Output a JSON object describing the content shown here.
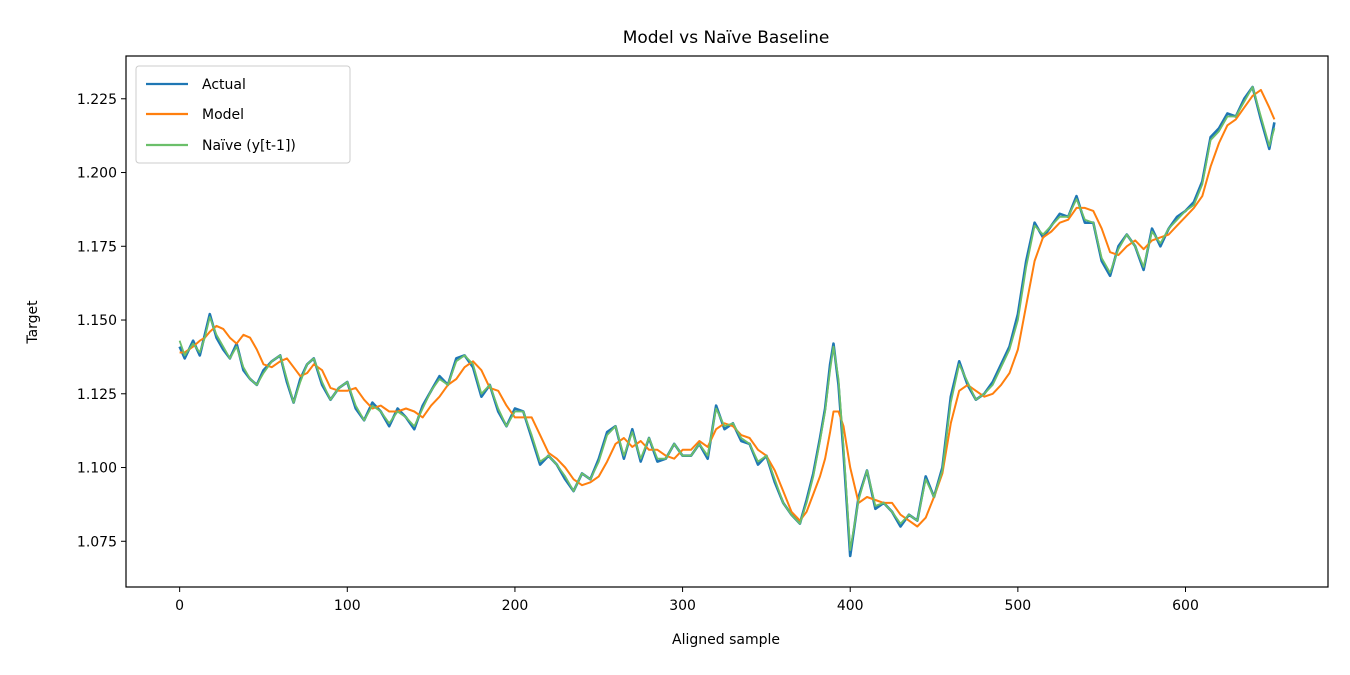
{
  "chart_data": {
    "type": "line",
    "title": "Model vs Naïve Baseline",
    "xlabel": "Aligned sample",
    "ylabel": "Target",
    "xlim": [
      -32,
      685
    ],
    "ylim": [
      1.0595,
      1.2395
    ],
    "xticks": [
      0,
      100,
      200,
      300,
      400,
      500,
      600
    ],
    "xtick_labels": [
      "0",
      "100",
      "200",
      "300",
      "400",
      "500",
      "600"
    ],
    "yticks": [
      1.075,
      1.1,
      1.125,
      1.15,
      1.175,
      1.2,
      1.225
    ],
    "ytick_labels": [
      "1.075",
      "1.100",
      "1.125",
      "1.150",
      "1.175",
      "1.200",
      "1.225"
    ],
    "grid": false,
    "legend_position": "top-left",
    "series": [
      {
        "name": "Actual",
        "color": "#1f77b4",
        "x": [
          0,
          3,
          8,
          12,
          15,
          18,
          22,
          26,
          30,
          34,
          38,
          42,
          46,
          50,
          55,
          60,
          64,
          68,
          72,
          76,
          80,
          85,
          90,
          95,
          100,
          105,
          110,
          115,
          120,
          125,
          130,
          135,
          140,
          145,
          150,
          155,
          160,
          165,
          170,
          175,
          180,
          185,
          190,
          195,
          200,
          205,
          210,
          215,
          220,
          225,
          230,
          235,
          240,
          245,
          250,
          255,
          260,
          265,
          270,
          275,
          280,
          285,
          290,
          295,
          300,
          305,
          310,
          315,
          320,
          325,
          330,
          335,
          340,
          345,
          350,
          355,
          360,
          365,
          370,
          374,
          378,
          382,
          385,
          388,
          390,
          393,
          396,
          400,
          405,
          410,
          415,
          420,
          425,
          430,
          435,
          440,
          445,
          450,
          455,
          460,
          465,
          470,
          475,
          480,
          485,
          490,
          495,
          500,
          505,
          510,
          515,
          520,
          525,
          530,
          535,
          540,
          545,
          550,
          555,
          560,
          565,
          570,
          575,
          580,
          585,
          590,
          595,
          600,
          605,
          610,
          615,
          620,
          625,
          630,
          635,
          640,
          645,
          650,
          653
        ],
        "values": [
          1.141,
          1.137,
          1.143,
          1.138,
          1.145,
          1.152,
          1.144,
          1.14,
          1.137,
          1.142,
          1.133,
          1.13,
          1.128,
          1.133,
          1.136,
          1.138,
          1.129,
          1.122,
          1.13,
          1.135,
          1.137,
          1.128,
          1.123,
          1.127,
          1.129,
          1.12,
          1.116,
          1.122,
          1.119,
          1.114,
          1.12,
          1.117,
          1.113,
          1.121,
          1.126,
          1.131,
          1.128,
          1.137,
          1.138,
          1.134,
          1.124,
          1.128,
          1.119,
          1.114,
          1.12,
          1.119,
          1.11,
          1.101,
          1.104,
          1.101,
          1.096,
          1.092,
          1.098,
          1.096,
          1.103,
          1.112,
          1.114,
          1.103,
          1.113,
          1.102,
          1.11,
          1.102,
          1.103,
          1.108,
          1.104,
          1.104,
          1.108,
          1.103,
          1.121,
          1.113,
          1.115,
          1.109,
          1.108,
          1.101,
          1.104,
          1.095,
          1.088,
          1.084,
          1.081,
          1.089,
          1.098,
          1.11,
          1.12,
          1.135,
          1.142,
          1.128,
          1.105,
          1.07,
          1.09,
          1.099,
          1.086,
          1.088,
          1.085,
          1.08,
          1.084,
          1.082,
          1.097,
          1.09,
          1.1,
          1.124,
          1.136,
          1.128,
          1.123,
          1.125,
          1.129,
          1.135,
          1.141,
          1.152,
          1.17,
          1.183,
          1.178,
          1.182,
          1.186,
          1.185,
          1.192,
          1.183,
          1.183,
          1.17,
          1.165,
          1.175,
          1.179,
          1.175,
          1.167,
          1.181,
          1.175,
          1.181,
          1.185,
          1.187,
          1.19,
          1.197,
          1.212,
          1.215,
          1.22,
          1.219,
          1.225,
          1.229,
          1.218,
          1.208,
          1.217
        ]
      },
      {
        "name": "Model",
        "color": "#ff7f0e",
        "x": [
          0,
          3,
          8,
          12,
          15,
          18,
          22,
          26,
          30,
          34,
          38,
          42,
          46,
          50,
          55,
          60,
          64,
          68,
          72,
          76,
          80,
          85,
          90,
          95,
          100,
          105,
          110,
          115,
          120,
          125,
          130,
          135,
          140,
          145,
          150,
          155,
          160,
          165,
          170,
          175,
          180,
          185,
          190,
          195,
          200,
          205,
          210,
          215,
          220,
          225,
          230,
          235,
          240,
          245,
          250,
          255,
          260,
          265,
          270,
          275,
          280,
          285,
          290,
          295,
          300,
          305,
          310,
          315,
          320,
          325,
          330,
          335,
          340,
          345,
          350,
          355,
          360,
          365,
          370,
          374,
          378,
          382,
          385,
          388,
          390,
          393,
          396,
          400,
          405,
          410,
          415,
          420,
          425,
          430,
          435,
          440,
          445,
          450,
          455,
          460,
          465,
          470,
          475,
          480,
          485,
          490,
          495,
          500,
          505,
          510,
          515,
          520,
          525,
          530,
          535,
          540,
          545,
          550,
          555,
          560,
          565,
          570,
          575,
          580,
          585,
          590,
          595,
          600,
          605,
          610,
          615,
          620,
          625,
          630,
          635,
          640,
          645,
          650,
          653
        ],
        "values": [
          1.139,
          1.139,
          1.141,
          1.143,
          1.144,
          1.146,
          1.148,
          1.147,
          1.144,
          1.142,
          1.145,
          1.144,
          1.14,
          1.135,
          1.134,
          1.136,
          1.137,
          1.134,
          1.131,
          1.132,
          1.135,
          1.133,
          1.127,
          1.126,
          1.126,
          1.127,
          1.123,
          1.12,
          1.121,
          1.119,
          1.119,
          1.12,
          1.119,
          1.117,
          1.121,
          1.124,
          1.128,
          1.13,
          1.134,
          1.136,
          1.133,
          1.127,
          1.126,
          1.121,
          1.117,
          1.117,
          1.117,
          1.111,
          1.105,
          1.103,
          1.1,
          1.096,
          1.094,
          1.095,
          1.097,
          1.102,
          1.108,
          1.11,
          1.107,
          1.109,
          1.106,
          1.106,
          1.104,
          1.103,
          1.106,
          1.106,
          1.109,
          1.107,
          1.113,
          1.115,
          1.114,
          1.111,
          1.11,
          1.106,
          1.104,
          1.099,
          1.092,
          1.085,
          1.082,
          1.085,
          1.091,
          1.097,
          1.103,
          1.112,
          1.119,
          1.119,
          1.114,
          1.1,
          1.088,
          1.09,
          1.089,
          1.088,
          1.088,
          1.084,
          1.082,
          1.08,
          1.083,
          1.09,
          1.098,
          1.115,
          1.126,
          1.128,
          1.126,
          1.124,
          1.125,
          1.128,
          1.132,
          1.14,
          1.155,
          1.17,
          1.178,
          1.18,
          1.183,
          1.184,
          1.188,
          1.188,
          1.187,
          1.181,
          1.173,
          1.172,
          1.175,
          1.177,
          1.174,
          1.177,
          1.178,
          1.179,
          1.182,
          1.185,
          1.188,
          1.192,
          1.202,
          1.21,
          1.216,
          1.218,
          1.222,
          1.226,
          1.228,
          1.222,
          1.218
        ]
      },
      {
        "name": "Naïve (y[t-1])",
        "color": "#6bbf6a",
        "x": [
          0,
          3,
          8,
          12,
          15,
          18,
          22,
          26,
          30,
          34,
          38,
          42,
          46,
          50,
          55,
          60,
          64,
          68,
          72,
          76,
          80,
          85,
          90,
          95,
          100,
          105,
          110,
          115,
          120,
          125,
          130,
          135,
          140,
          145,
          150,
          155,
          160,
          165,
          170,
          175,
          180,
          185,
          190,
          195,
          200,
          205,
          210,
          215,
          220,
          225,
          230,
          235,
          240,
          245,
          250,
          255,
          260,
          265,
          270,
          275,
          280,
          285,
          290,
          295,
          300,
          305,
          310,
          315,
          320,
          325,
          330,
          335,
          340,
          345,
          350,
          355,
          360,
          365,
          370,
          374,
          378,
          382,
          385,
          388,
          390,
          393,
          396,
          400,
          405,
          410,
          415,
          420,
          425,
          430,
          435,
          440,
          445,
          450,
          455,
          460,
          465,
          470,
          475,
          480,
          485,
          490,
          495,
          500,
          505,
          510,
          515,
          520,
          525,
          530,
          535,
          540,
          545,
          550,
          555,
          560,
          565,
          570,
          575,
          580,
          585,
          590,
          595,
          600,
          605,
          610,
          615,
          620,
          625,
          630,
          635,
          640,
          645,
          650,
          653
        ],
        "values": [
          1.143,
          1.138,
          1.142,
          1.139,
          1.144,
          1.151,
          1.145,
          1.141,
          1.137,
          1.141,
          1.134,
          1.13,
          1.128,
          1.132,
          1.136,
          1.138,
          1.13,
          1.122,
          1.129,
          1.135,
          1.137,
          1.129,
          1.123,
          1.127,
          1.129,
          1.121,
          1.116,
          1.121,
          1.119,
          1.115,
          1.119,
          1.117,
          1.114,
          1.12,
          1.126,
          1.13,
          1.128,
          1.136,
          1.138,
          1.135,
          1.125,
          1.128,
          1.12,
          1.114,
          1.119,
          1.119,
          1.111,
          1.102,
          1.104,
          1.101,
          1.097,
          1.092,
          1.098,
          1.096,
          1.102,
          1.111,
          1.114,
          1.104,
          1.112,
          1.103,
          1.11,
          1.103,
          1.103,
          1.108,
          1.104,
          1.104,
          1.108,
          1.104,
          1.12,
          1.114,
          1.115,
          1.11,
          1.108,
          1.102,
          1.104,
          1.096,
          1.088,
          1.084,
          1.081,
          1.088,
          1.097,
          1.109,
          1.119,
          1.133,
          1.141,
          1.13,
          1.107,
          1.072,
          1.089,
          1.099,
          1.087,
          1.088,
          1.085,
          1.081,
          1.084,
          1.082,
          1.096,
          1.09,
          1.099,
          1.122,
          1.135,
          1.129,
          1.123,
          1.125,
          1.128,
          1.134,
          1.14,
          1.15,
          1.168,
          1.182,
          1.179,
          1.182,
          1.185,
          1.185,
          1.191,
          1.184,
          1.183,
          1.171,
          1.166,
          1.174,
          1.179,
          1.175,
          1.168,
          1.18,
          1.176,
          1.181,
          1.184,
          1.187,
          1.189,
          1.196,
          1.211,
          1.214,
          1.219,
          1.219,
          1.224,
          1.229,
          1.219,
          1.209,
          1.215
        ]
      }
    ]
  }
}
